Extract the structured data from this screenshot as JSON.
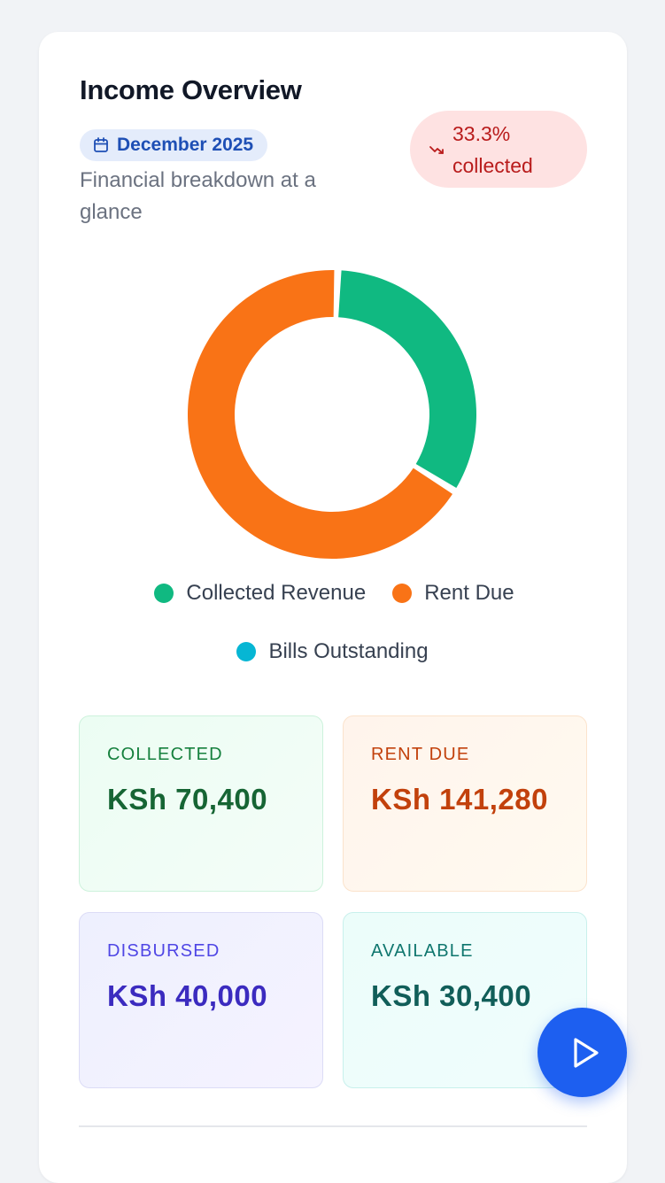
{
  "header": {
    "title": "Income Overview",
    "period": "December 2025",
    "subtitle": "Financial breakdown at a glance",
    "collected_percent": "33.3%",
    "collected_suffix": "collected"
  },
  "icons": {
    "period": "calendar-icon",
    "trend": "trending-down-icon",
    "fab": "play-icon"
  },
  "chart_data": {
    "type": "pie",
    "style": "donut",
    "series": [
      {
        "name": "Collected Revenue",
        "value": 70400,
        "color": "#10b981"
      },
      {
        "name": "Rent Due",
        "value": 141280,
        "color": "#f97316"
      },
      {
        "name": "Bills Outstanding",
        "value": 0,
        "color": "#06b6d4"
      }
    ],
    "legend_position": "bottom"
  },
  "legend": [
    {
      "label": "Collected Revenue",
      "color": "#10b981"
    },
    {
      "label": "Rent Due",
      "color": "#f97316"
    },
    {
      "label": "Bills Outstanding",
      "color": "#06b6d4"
    }
  ],
  "stats": {
    "collected": {
      "label": "COLLECTED",
      "amount": "KSh 70,400"
    },
    "rent_due": {
      "label": "RENT DUE",
      "amount": "KSh 141,280"
    },
    "disbursed": {
      "label": "DISBURSED",
      "amount": "KSh 40,000"
    },
    "available": {
      "label": "AVAILABLE",
      "amount": "KSh 30,400"
    }
  },
  "colors": {
    "accent": "#1d5ff0",
    "collected": "#10b981",
    "rent_due": "#f97316",
    "bills": "#06b6d4",
    "negative": "#b91c1c"
  }
}
